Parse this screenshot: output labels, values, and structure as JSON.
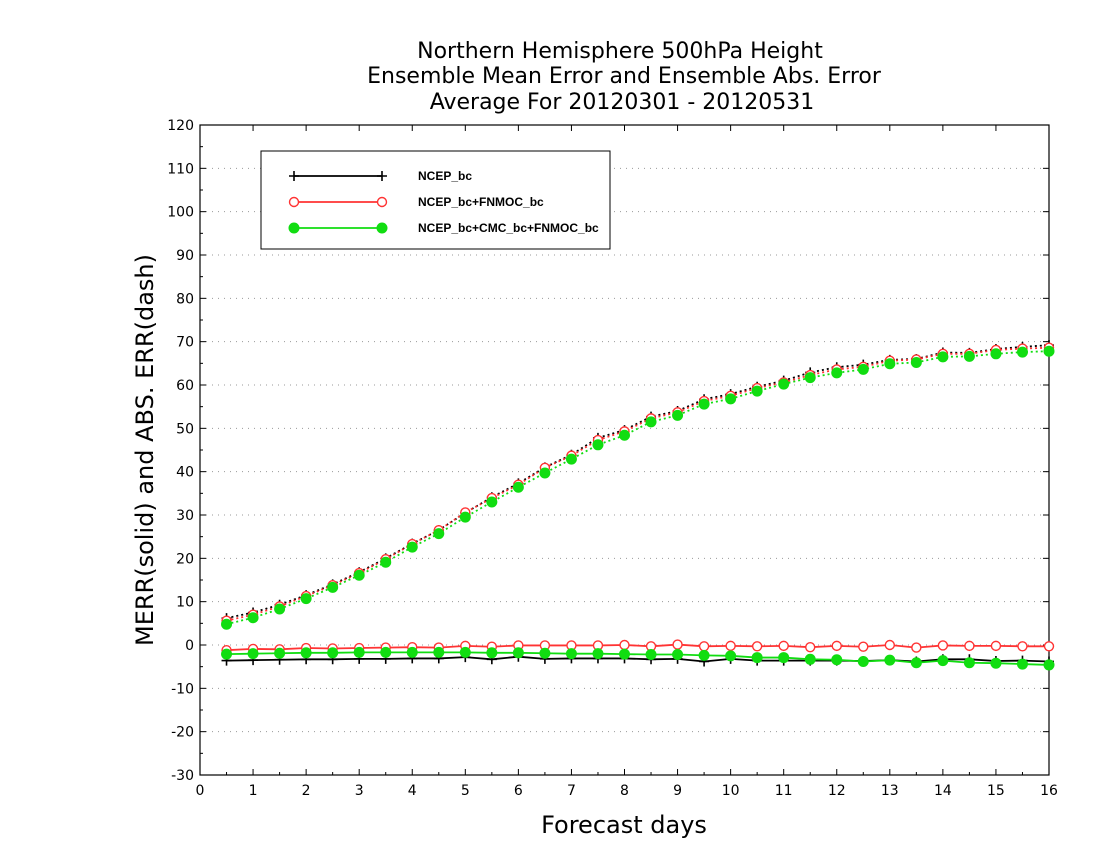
{
  "chart_data": {
    "type": "line",
    "title_lines": [
      "Northern Hemisphere 500hPa Height",
      "Ensemble Mean Error and Ensemble Abs. Error",
      "Average For 20120301 - 20120531"
    ],
    "xlabel": "Forecast days",
    "ylabel": "MERR(solid) and ABS. ERR(dash)",
    "xlim": [
      0,
      16
    ],
    "ylim": [
      -30,
      120
    ],
    "x_ticks": [
      0,
      1,
      2,
      3,
      4,
      5,
      6,
      7,
      8,
      9,
      10,
      11,
      12,
      13,
      14,
      15,
      16
    ],
    "y_ticks": [
      -30,
      -20,
      -10,
      0,
      10,
      20,
      30,
      40,
      50,
      60,
      70,
      80,
      90,
      100,
      110,
      120
    ],
    "grid": "dotted horizontal",
    "legend_position": "top-left",
    "x": [
      0.5,
      1,
      1.5,
      2,
      2.5,
      3,
      3.5,
      4,
      4.5,
      5,
      5.5,
      6,
      6.5,
      7,
      7.5,
      8,
      8.5,
      9,
      9.5,
      10,
      10.5,
      11,
      11.5,
      12,
      12.5,
      13,
      13.5,
      14,
      14.5,
      15,
      15.5,
      16
    ],
    "series": [
      {
        "name": "NCEP_bc",
        "color": "#000000",
        "marker": "plus",
        "merr": [
          -3.6,
          -3.5,
          -3.4,
          -3.3,
          -3.3,
          -3.2,
          -3.2,
          -3.1,
          -3.1,
          -2.8,
          -3.3,
          -2.7,
          -3.2,
          -3.1,
          -3.1,
          -3.1,
          -3.3,
          -3.2,
          -3.8,
          -3.2,
          -3.6,
          -3.6,
          -3.6,
          -3.6,
          -3.7,
          -3.5,
          -3.8,
          -3.3,
          -3.3,
          -3.7,
          -3.6,
          -3.8
        ],
        "abs_err": [
          6.2,
          7.5,
          9.3,
          11.5,
          14.0,
          16.8,
          20.0,
          23.4,
          26.5,
          30.5,
          34.1,
          37.3,
          41.0,
          43.9,
          47.8,
          49.6,
          52.7,
          54.0,
          56.7,
          57.9,
          59.6,
          61.0,
          62.9,
          64.1,
          64.7,
          65.8,
          66.0,
          67.5,
          67.4,
          68.3,
          68.8,
          69.2
        ]
      },
      {
        "name": "NCEP_bc+FNMOC_bc",
        "color": "#ff3333",
        "marker": "open-circle",
        "merr": [
          -1.2,
          -0.9,
          -1.0,
          -0.7,
          -0.8,
          -0.7,
          -0.6,
          -0.5,
          -0.6,
          -0.2,
          -0.4,
          -0.1,
          -0.1,
          -0.1,
          -0.1,
          0.0,
          -0.3,
          0.1,
          -0.3,
          -0.2,
          -0.3,
          -0.2,
          -0.5,
          -0.2,
          -0.4,
          0.0,
          -0.6,
          -0.1,
          -0.2,
          -0.2,
          -0.3,
          -0.3
        ],
        "abs_err": [
          5.6,
          7.0,
          8.9,
          11.3,
          13.8,
          16.6,
          19.8,
          23.3,
          26.5,
          30.6,
          33.9,
          37.0,
          40.9,
          43.7,
          47.3,
          49.3,
          52.3,
          53.7,
          56.3,
          57.5,
          59.3,
          60.6,
          62.3,
          63.6,
          64.2,
          65.6,
          65.9,
          67.2,
          67.2,
          68.1,
          68.4,
          68.6
        ]
      },
      {
        "name": "NCEP_bc+CMC_bc+FNMOC_bc",
        "color": "#11dd11",
        "marker": "filled-circle",
        "merr": [
          -2.1,
          -2.0,
          -1.9,
          -1.8,
          -1.8,
          -1.7,
          -1.7,
          -1.7,
          -1.7,
          -1.7,
          -1.8,
          -1.8,
          -1.9,
          -2.0,
          -2.0,
          -2.1,
          -2.2,
          -2.2,
          -2.4,
          -2.5,
          -2.9,
          -2.9,
          -3.3,
          -3.4,
          -3.8,
          -3.5,
          -4.1,
          -3.6,
          -4.1,
          -4.2,
          -4.4,
          -4.6
        ],
        "abs_err": [
          4.8,
          6.3,
          8.3,
          10.7,
          13.3,
          16.1,
          19.1,
          22.6,
          25.7,
          29.5,
          33.0,
          36.4,
          39.7,
          42.9,
          46.2,
          48.4,
          51.5,
          53.0,
          55.6,
          56.8,
          58.6,
          60.2,
          61.7,
          62.8,
          63.6,
          64.9,
          65.2,
          66.5,
          66.6,
          67.2,
          67.6,
          67.8
        ]
      }
    ]
  }
}
